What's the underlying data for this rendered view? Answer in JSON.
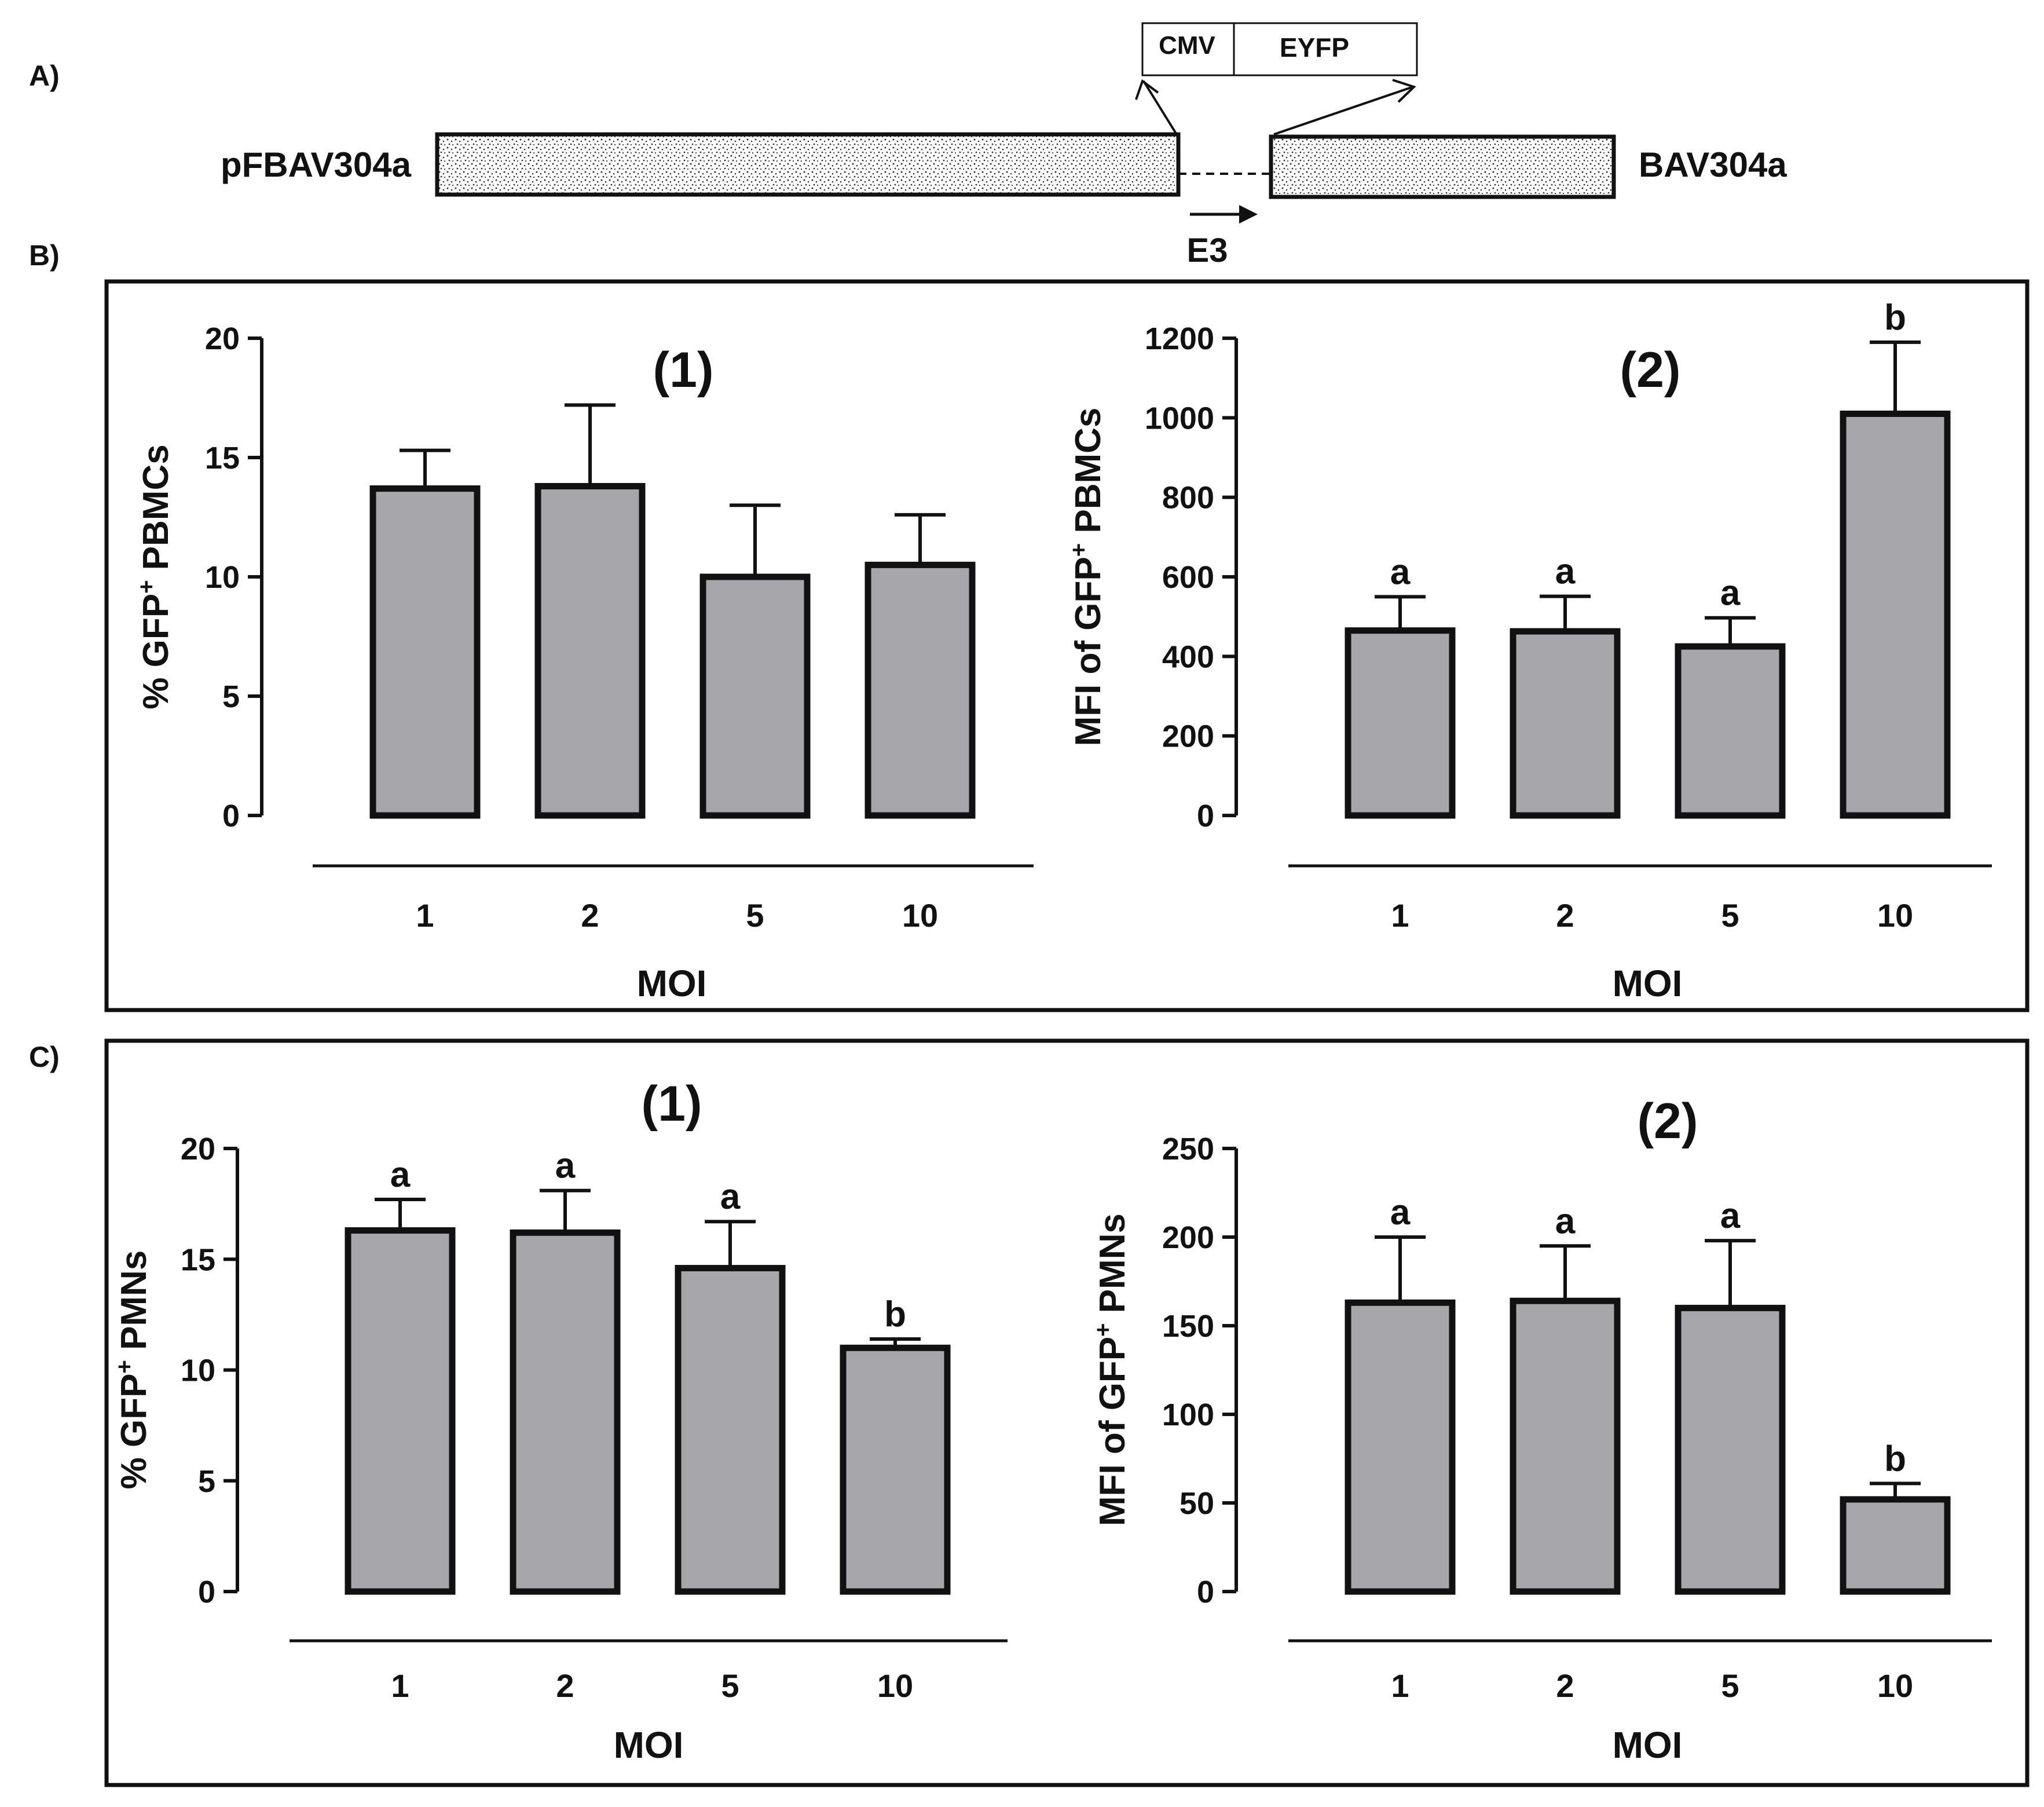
{
  "colors": {
    "bar_fill": "#a7a6ab",
    "stroke": "#111111",
    "background": "#ffffff"
  },
  "panel_a": {
    "label": "A)",
    "left_label": "pFBAV304a",
    "right_label": "BAV304a",
    "cassette_promoter": "CMV",
    "cassette_gene": "EYFP",
    "region_label": "E3"
  },
  "panel_b": {
    "label": "B)"
  },
  "panel_c": {
    "label": "C)"
  },
  "chart_data": [
    {
      "id": "B1",
      "panel": "B",
      "type": "bar",
      "title": "(1)",
      "ylabel": "% GFP⁺ PBMCs",
      "ylabel_main": "% GFP",
      "ylabel_sup": "+",
      "ylabel_rest": " PBMCs",
      "xlabel": "MOI",
      "categories": [
        "1",
        "2",
        "5",
        "10"
      ],
      "values": [
        13.7,
        13.8,
        10.0,
        10.5
      ],
      "errors": [
        1.6,
        3.4,
        3.0,
        2.1
      ],
      "letters": [
        "",
        "",
        "",
        ""
      ],
      "ylim": [
        0,
        20
      ],
      "yticks": [
        0,
        5,
        10,
        15,
        20
      ],
      "grid": false
    },
    {
      "id": "B2",
      "panel": "B",
      "type": "bar",
      "title": "(2)",
      "ylabel": "MFI of GFP⁺ PBMCs",
      "ylabel_main": "MFI of GFP",
      "ylabel_sup": "+",
      "ylabel_rest": " PBMCs",
      "xlabel": "MOI",
      "categories": [
        "1",
        "2",
        "5",
        "10"
      ],
      "values": [
        465,
        463,
        425,
        1010
      ],
      "errors": [
        85,
        88,
        72,
        180
      ],
      "letters": [
        "a",
        "a",
        "a",
        "b"
      ],
      "ylim": [
        0,
        1200
      ],
      "yticks": [
        0,
        200,
        400,
        600,
        800,
        1000,
        1200
      ],
      "grid": false
    },
    {
      "id": "C1",
      "panel": "C",
      "type": "bar",
      "title": "(1)",
      "ylabel": "% GFP⁺ PMNs",
      "ylabel_main": "% GFP",
      "ylabel_sup": "+",
      "ylabel_rest": " PMNs",
      "xlabel": "MOI",
      "categories": [
        "1",
        "2",
        "5",
        "10"
      ],
      "values": [
        16.3,
        16.2,
        14.6,
        11.0
      ],
      "errors": [
        1.4,
        1.9,
        2.1,
        0.4
      ],
      "letters": [
        "a",
        "a",
        "a",
        "b"
      ],
      "ylim": [
        0,
        20
      ],
      "yticks": [
        0,
        5,
        10,
        15,
        20
      ],
      "grid": false
    },
    {
      "id": "C2",
      "panel": "C",
      "type": "bar",
      "title": "(2)",
      "ylabel": "MFI of GFP⁺ PMNs",
      "ylabel_main": "MFI of GFP",
      "ylabel_sup": "+",
      "ylabel_rest": " PMNs",
      "xlabel": "MOI",
      "categories": [
        "1",
        "2",
        "5",
        "10"
      ],
      "values": [
        163,
        164,
        160,
        52
      ],
      "errors": [
        37,
        31,
        38,
        9
      ],
      "letters": [
        "a",
        "a",
        "a",
        "b"
      ],
      "ylim": [
        0,
        250
      ],
      "yticks": [
        0,
        50,
        100,
        150,
        200,
        250
      ],
      "grid": false
    }
  ]
}
